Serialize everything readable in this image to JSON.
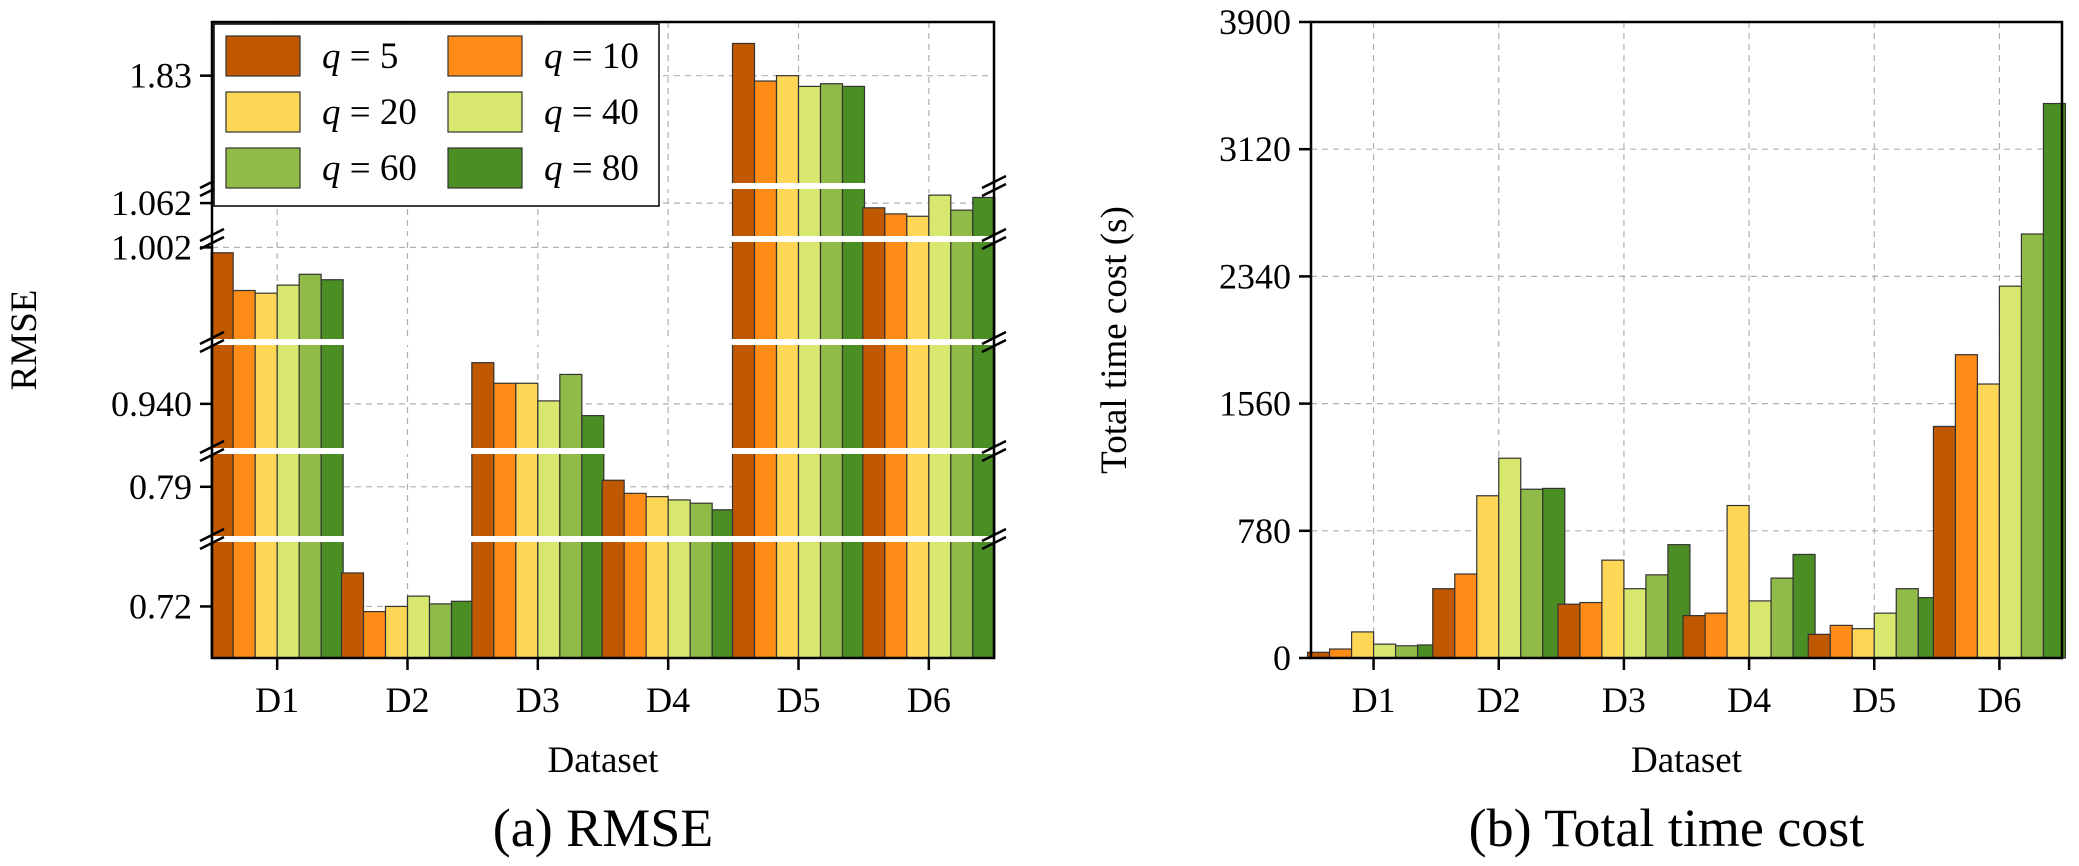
{
  "chart_data": [
    {
      "type": "bar",
      "caption": "(a) RMSE",
      "xlabel": "Dataset",
      "ylabel": "RMSE",
      "categories": [
        "D1",
        "D2",
        "D3",
        "D4",
        "D5",
        "D6"
      ],
      "y_axis": "broken",
      "y_segments": [
        {
          "range": [
            0.7,
            0.745
          ],
          "ticks": [
            "0.72"
          ]
        },
        {
          "range": [
            0.775,
            0.8
          ],
          "ticks": [
            "0.79"
          ]
        },
        {
          "range": [
            0.925,
            0.96
          ],
          "ticks": [
            "0.940"
          ]
        },
        {
          "range": [
            0.985,
            1.003
          ],
          "ticks": [
            "1.002"
          ]
        },
        {
          "range": [
            1.055,
            1.065
          ],
          "ticks": [
            "1.062"
          ]
        },
        {
          "range": [
            1.81,
            1.84
          ],
          "ticks": [
            "1.83"
          ]
        }
      ],
      "grid": true,
      "legend": "top-left",
      "series": [
        {
          "name": "q = 5",
          "values": [
            1.001,
            0.733,
            0.954,
            0.792,
            1.836,
            1.061
          ],
          "color": "#C05800"
        },
        {
          "name": "q = 10",
          "values": [
            0.994,
            0.718,
            0.947,
            0.788,
            1.829,
            1.0597
          ],
          "color": "#FF8C17"
        },
        {
          "name": "q = 20",
          "values": [
            0.9935,
            0.72,
            0.947,
            0.787,
            1.83,
            1.0592
          ],
          "color": "#FFD756"
        },
        {
          "name": "q = 40",
          "values": [
            0.995,
            0.724,
            0.941,
            0.786,
            1.828,
            1.0637
          ],
          "color": "#D8E86E"
        },
        {
          "name": "q = 60",
          "values": [
            0.997,
            0.721,
            0.95,
            0.785,
            1.8285,
            1.0605
          ],
          "color": "#91BB48"
        },
        {
          "name": "q = 80",
          "values": [
            0.996,
            0.722,
            0.936,
            0.783,
            1.828,
            1.0632
          ],
          "color": "#4B8E23"
        }
      ]
    },
    {
      "type": "bar",
      "caption": "(b) Total time cost",
      "xlabel": "Dataset",
      "ylabel": "Total time cost (s)",
      "categories": [
        "D1",
        "D2",
        "D3",
        "D4",
        "D5",
        "D6"
      ],
      "ylim": [
        0,
        3900
      ],
      "yticks": [
        "0",
        "780",
        "1560",
        "2340",
        "3120",
        "3900"
      ],
      "grid": true,
      "series": [
        {
          "name": "q = 5",
          "values": [
            35,
            425,
            330,
            260,
            145,
            1420
          ],
          "color": "#C05800"
        },
        {
          "name": "q = 10",
          "values": [
            55,
            515,
            340,
            275,
            200,
            1860
          ],
          "color": "#FF8C17"
        },
        {
          "name": "q = 20",
          "values": [
            160,
            995,
            600,
            935,
            180,
            1680
          ],
          "color": "#FFD756"
        },
        {
          "name": "q = 40",
          "values": [
            85,
            1225,
            425,
            350,
            275,
            2280
          ],
          "color": "#D8E86E"
        },
        {
          "name": "q = 60",
          "values": [
            75,
            1035,
            510,
            490,
            425,
            2600
          ],
          "color": "#91BB48"
        },
        {
          "name": "q = 80",
          "values": [
            80,
            1040,
            695,
            635,
            370,
            3400
          ],
          "color": "#4B8E23"
        }
      ]
    }
  ]
}
